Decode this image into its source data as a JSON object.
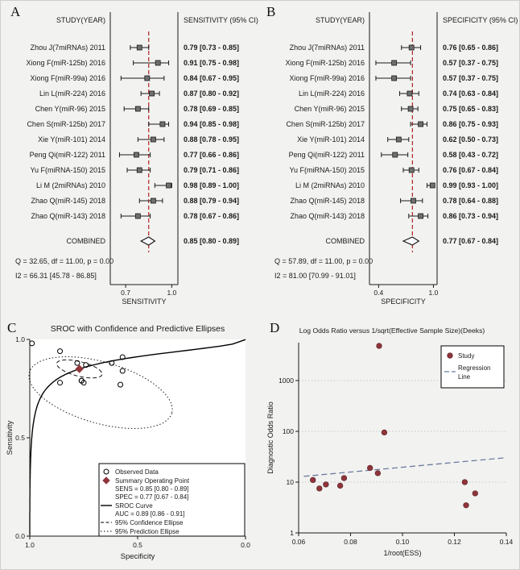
{
  "figure": {
    "panel_labels": {
      "a": "A",
      "b": "B",
      "c": "C",
      "d": "D"
    }
  },
  "colors": {
    "background": "#f2f2f0",
    "ref_line": "#b22222",
    "marker_fill": "#707070",
    "maroon": "#90353b",
    "regression": "#6b7b9e",
    "grid": "#c3cdcd",
    "axis": "#1a1a1a"
  },
  "chart_data": [
    {
      "id": "forest_sens",
      "type": "forest",
      "header_left": "STUDY(YEAR)",
      "header_right": "SENSITIVITY (95% CI)",
      "axis_label": "SENSITIVITY",
      "axis_ticks": [
        "0.7",
        "1.0"
      ],
      "axis_min": 0.6,
      "axis_max": 1.04,
      "ref_value": 0.85,
      "studies": [
        {
          "name": "Zhou J(7miRNAs) 2011",
          "est": 0.79,
          "lo": 0.73,
          "hi": 0.85,
          "text": "0.79 [0.73 - 0.85]"
        },
        {
          "name": "Xiong F(miR-125b) 2016",
          "est": 0.91,
          "lo": 0.75,
          "hi": 0.98,
          "text": "0.91 [0.75 - 0.98]"
        },
        {
          "name": "Xiong F(miR-99a) 2016",
          "est": 0.84,
          "lo": 0.67,
          "hi": 0.95,
          "text": "0.84 [0.67 - 0.95]"
        },
        {
          "name": "Lin L(miR-224) 2016",
          "est": 0.87,
          "lo": 0.8,
          "hi": 0.92,
          "text": "0.87 [0.80 - 0.92]"
        },
        {
          "name": "Chen Y(miR-96) 2015",
          "est": 0.78,
          "lo": 0.69,
          "hi": 0.85,
          "text": "0.78 [0.69 - 0.85]"
        },
        {
          "name": "Chen S(miR-125b) 2017",
          "est": 0.94,
          "lo": 0.85,
          "hi": 0.98,
          "text": "0.94 [0.85 - 0.98]"
        },
        {
          "name": "Xie Y(miR-101) 2014",
          "est": 0.88,
          "lo": 0.78,
          "hi": 0.95,
          "text": "0.88 [0.78 - 0.95]"
        },
        {
          "name": "Peng Qi(miR-122) 2011",
          "est": 0.77,
          "lo": 0.66,
          "hi": 0.86,
          "text": "0.77 [0.66 - 0.86]"
        },
        {
          "name": "Yu F(miRNA-150) 2015",
          "est": 0.79,
          "lo": 0.71,
          "hi": 0.86,
          "text": "0.79 [0.71 - 0.86]"
        },
        {
          "name": "Li M (2miRNAs) 2010",
          "est": 0.98,
          "lo": 0.89,
          "hi": 1.0,
          "text": "0.98 [0.89 - 1.00]"
        },
        {
          "name": "Zhao Q(miR-145) 2018",
          "est": 0.88,
          "lo": 0.79,
          "hi": 0.94,
          "text": "0.88 [0.79 - 0.94]"
        },
        {
          "name": "Zhao Q(miR-143) 2018",
          "est": 0.78,
          "lo": 0.67,
          "hi": 0.86,
          "text": "0.78 [0.67 - 0.86]"
        }
      ],
      "combined": {
        "name": "COMBINED",
        "est": 0.85,
        "lo": 0.8,
        "hi": 0.89,
        "text": "0.85 [0.80 - 0.89]"
      },
      "heterogeneity": [
        "Q = 32.65, df = 11.00, p =  0.00",
        "I2 = 66.31 [45.78 - 86.85]"
      ]
    },
    {
      "id": "forest_spec",
      "type": "forest",
      "header_left": "STUDY(YEAR)",
      "header_right": "SPECIFICITY (95% CI)",
      "axis_label": "SPECIFICITY",
      "axis_ticks": [
        "0.4",
        "1.0"
      ],
      "axis_min": 0.3,
      "axis_max": 1.04,
      "ref_value": 0.77,
      "studies": [
        {
          "name": "Zhou J(7miRNAs) 2011",
          "est": 0.76,
          "lo": 0.65,
          "hi": 0.86,
          "text": "0.76 [0.65 - 0.86]"
        },
        {
          "name": "Xiong F(miR-125b) 2016",
          "est": 0.57,
          "lo": 0.37,
          "hi": 0.75,
          "text": "0.57 [0.37 - 0.75]"
        },
        {
          "name": "Xiong F(miR-99a) 2016",
          "est": 0.57,
          "lo": 0.37,
          "hi": 0.75,
          "text": "0.57 [0.37 - 0.75]"
        },
        {
          "name": "Lin L(miR-224) 2016",
          "est": 0.74,
          "lo": 0.63,
          "hi": 0.84,
          "text": "0.74 [0.63 - 0.84]"
        },
        {
          "name": "Chen Y(miR-96) 2015",
          "est": 0.75,
          "lo": 0.65,
          "hi": 0.83,
          "text": "0.75 [0.65 - 0.83]"
        },
        {
          "name": "Chen S(miR-125b) 2017",
          "est": 0.86,
          "lo": 0.75,
          "hi": 0.93,
          "text": "0.86 [0.75 - 0.93]"
        },
        {
          "name": "Xie Y(miR-101) 2014",
          "est": 0.62,
          "lo": 0.5,
          "hi": 0.73,
          "text": "0.62 [0.50 - 0.73]"
        },
        {
          "name": "Peng Qi(miR-122) 2011",
          "est": 0.58,
          "lo": 0.43,
          "hi": 0.72,
          "text": "0.58 [0.43 - 0.72]"
        },
        {
          "name": "Yu F(miRNA-150) 2015",
          "est": 0.76,
          "lo": 0.67,
          "hi": 0.84,
          "text": "0.76 [0.67 - 0.84]"
        },
        {
          "name": "Li M (2miRNAs) 2010",
          "est": 0.99,
          "lo": 0.93,
          "hi": 1.0,
          "text": "0.99 [0.93 - 1.00]"
        },
        {
          "name": "Zhao Q(miR-145) 2018",
          "est": 0.78,
          "lo": 0.64,
          "hi": 0.88,
          "text": "0.78 [0.64 - 0.88]"
        },
        {
          "name": "Zhao Q(miR-143) 2018",
          "est": 0.86,
          "lo": 0.73,
          "hi": 0.94,
          "text": "0.86 [0.73 - 0.94]"
        }
      ],
      "combined": {
        "name": "COMBINED",
        "est": 0.77,
        "lo": 0.67,
        "hi": 0.84,
        "text": "0.77 [0.67 - 0.84]"
      },
      "heterogeneity": [
        "Q = 57.89, df = 11.00, p =  0.00",
        "I2 = 81.00 [70.99 - 91.01]"
      ]
    },
    {
      "id": "sroc",
      "type": "scatter",
      "title": "SROC with Confidence and Predictive Ellipses",
      "xlabel": "Specificity",
      "ylabel": "Sensitivity",
      "x_reversed": true,
      "xticks": [
        "1.0",
        "0.5",
        "0.0"
      ],
      "yticks": [
        "0.0",
        "0.5",
        "1.0"
      ],
      "observed": [
        [
          0.76,
          0.79
        ],
        [
          0.57,
          0.91
        ],
        [
          0.57,
          0.84
        ],
        [
          0.74,
          0.87
        ],
        [
          0.75,
          0.78
        ],
        [
          0.86,
          0.94
        ],
        [
          0.62,
          0.88
        ],
        [
          0.58,
          0.77
        ],
        [
          0.76,
          0.79
        ],
        [
          0.99,
          0.98
        ],
        [
          0.78,
          0.88
        ],
        [
          0.86,
          0.78
        ]
      ],
      "summary_point": {
        "spec": 0.77,
        "sens": 0.85
      },
      "legend": {
        "observed": "Observed Data",
        "summary_title": "Summary Operating Point",
        "sens_line": "SENS = 0.85 [0.80 - 0.89]",
        "spec_line": "SPEC = 0.77 [0.67 - 0.84]",
        "curve": "SROC Curve",
        "auc_line": "AUC = 0.89 [0.86 - 0.91]",
        "conf": "95% Confidence Ellipse",
        "pred": "95% Prediction Ellipse"
      }
    },
    {
      "id": "deeks",
      "type": "scatter",
      "title": "Log Odds Ratio versus 1/sqrt(Effective Sample Size)(Deeks)",
      "xlabel": "1/root(ESS)",
      "ylabel": "Diagnostic Odds Ratio",
      "y_log": true,
      "xticks": [
        "0.06",
        "0.08",
        "0.10",
        "0.12",
        "0.14"
      ],
      "yticks": [
        "1",
        "10",
        "100",
        "1000"
      ],
      "xlim": [
        0.06,
        0.14
      ],
      "points": [
        [
          0.0655,
          11
        ],
        [
          0.068,
          7.5
        ],
        [
          0.0705,
          9
        ],
        [
          0.076,
          8.5
        ],
        [
          0.0775,
          12
        ],
        [
          0.0875,
          19
        ],
        [
          0.0905,
          15
        ],
        [
          0.093,
          95
        ],
        [
          0.091,
          4800
        ],
        [
          0.124,
          10
        ],
        [
          0.1245,
          3.5
        ],
        [
          0.128,
          6
        ]
      ],
      "regression": [
        [
          0.062,
          13
        ],
        [
          0.139,
          30
        ]
      ],
      "legend": {
        "study": "Study",
        "regression_1": "Regression",
        "regression_2": "Line"
      }
    }
  ]
}
